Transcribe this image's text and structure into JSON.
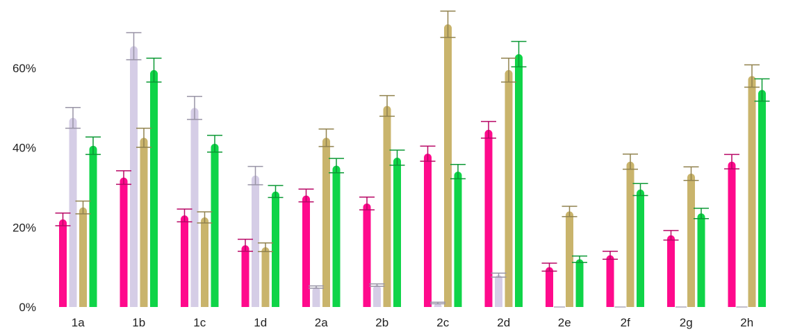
{
  "chart_data": {
    "type": "bar",
    "title": "",
    "xlabel": "",
    "ylabel": "",
    "ylim": [
      0,
      75
    ],
    "yticks": [
      0,
      20,
      40,
      60
    ],
    "ytick_labels": [
      "0%",
      "20%",
      "40%",
      "60%"
    ],
    "grid": false,
    "legend": "none",
    "categories": [
      "1a",
      "1b",
      "1c",
      "1d",
      "2a",
      "2b",
      "2c",
      "2d",
      "2e",
      "2f",
      "2g",
      "2h"
    ],
    "series": [
      {
        "color": "#ff0a8c",
        "values": [
          22,
          32.5,
          23,
          15.5,
          28,
          26,
          38.5,
          44.5,
          10,
          13,
          18,
          36.5
        ],
        "errors": [
          1.6,
          1.7,
          1.6,
          1.5,
          1.6,
          1.6,
          1.9,
          2.1,
          1.0,
          1.0,
          1.2,
          1.8
        ]
      },
      {
        "color": "#d5cde6",
        "values": [
          47.5,
          65.5,
          50,
          33,
          5,
          5.5,
          1,
          8,
          0,
          0,
          0,
          0
        ],
        "errors": [
          2.6,
          3.4,
          2.9,
          2.3,
          0.3,
          0.3,
          0.2,
          0.5,
          0,
          0,
          0,
          0
        ]
      },
      {
        "color": "#c9b46c",
        "values": [
          25,
          42.5,
          22.5,
          15,
          42.5,
          50.5,
          71,
          59.5,
          24,
          36.5,
          33.5,
          58
        ],
        "errors": [
          1.6,
          2.4,
          1.4,
          1.1,
          2.2,
          2.6,
          3.3,
          3.0,
          1.3,
          1.9,
          1.7,
          2.8
        ]
      },
      {
        "color": "#0fd448",
        "values": [
          40.5,
          59.5,
          41,
          29,
          35.5,
          37.5,
          34,
          63.5,
          12,
          29.5,
          23.5,
          54.5
        ],
        "errors": [
          2.2,
          3.0,
          2.1,
          1.5,
          1.8,
          1.9,
          1.8,
          3.2,
          0.8,
          1.5,
          1.3,
          2.8
        ]
      }
    ]
  }
}
